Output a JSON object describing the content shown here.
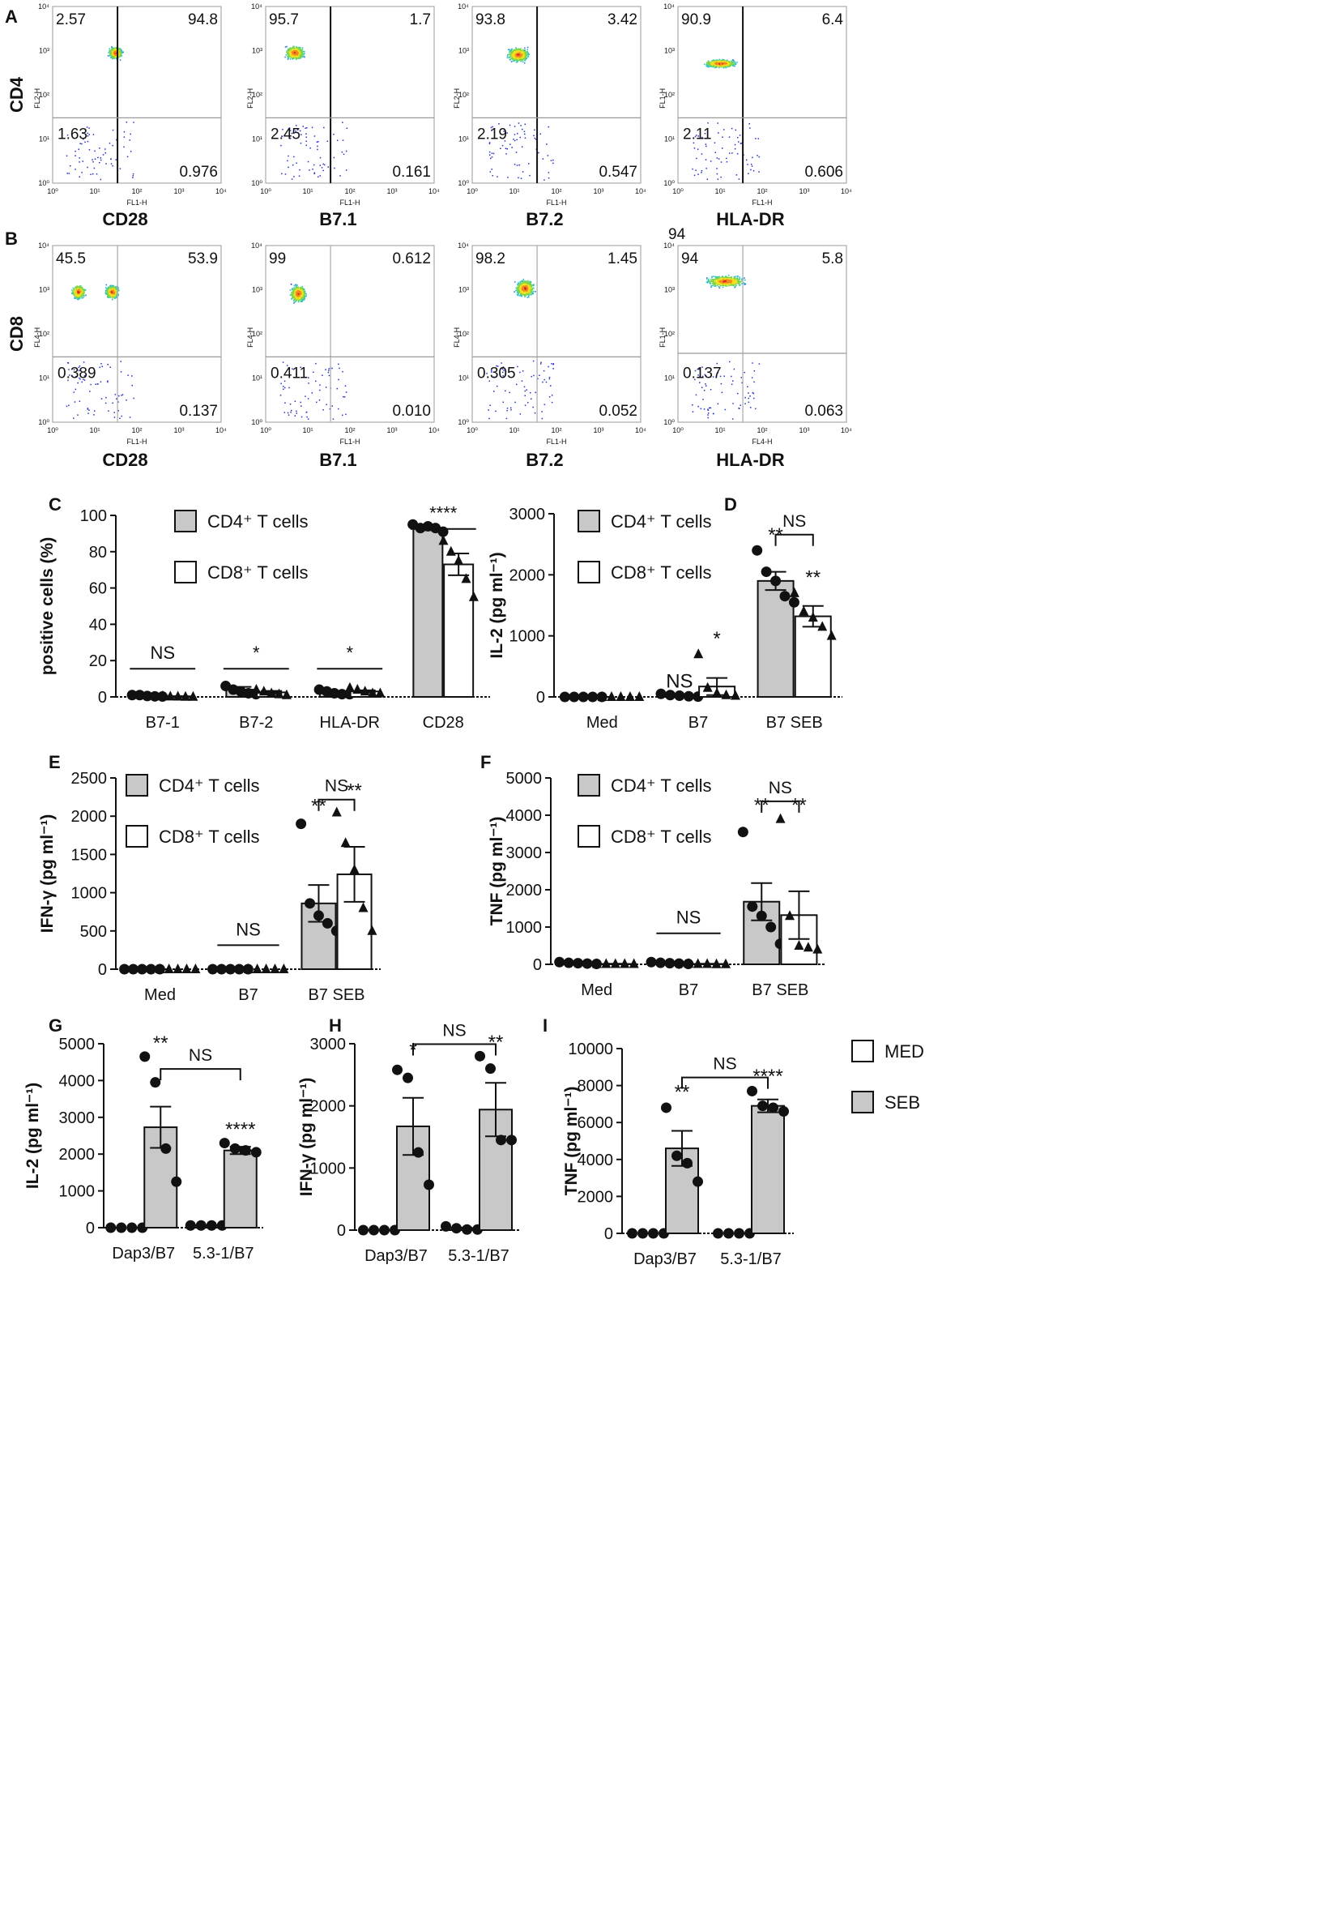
{
  "panel_letters": [
    "A",
    "B",
    "C",
    "D",
    "E",
    "F",
    "G",
    "H",
    "I"
  ],
  "flow": {
    "axis_labels": {
      "ticks": [
        "10⁰",
        "10¹",
        "10²",
        "10³",
        "10⁴"
      ],
      "fl1": "FL1-H",
      "fl2": "FL2-H",
      "fl4": "FL4-H"
    },
    "rows": [
      {
        "letter": "A",
        "marker": "CD4",
        "plots": [
          {
            "xlabel": "CD28",
            "xaxis": "FL1-H",
            "yaxis": "FL2-H",
            "ul": "2.57",
            "ur": "94.8",
            "ll": "1.63",
            "lr": "0.976"
          },
          {
            "xlabel": "B7.1",
            "xaxis": "FL1-H",
            "yaxis": "FL2-H",
            "ul": "95.7",
            "ur": "1.7",
            "ll": "2.45",
            "lr": "0.161"
          },
          {
            "xlabel": "B7.2",
            "xaxis": "FL1-H",
            "yaxis": "FL2-H",
            "ul": "93.8",
            "ur": "3.42",
            "ll": "2.19",
            "lr": "0.547"
          },
          {
            "xlabel": "HLA-DR",
            "xaxis": "FL1-H",
            "yaxis": "FL1-H",
            "ul": "90.9",
            "ur": "6.4",
            "ll": "2.11",
            "lr": "0.606"
          }
        ]
      },
      {
        "letter": "B",
        "marker": "CD8",
        "plots": [
          {
            "xlabel": "CD28",
            "xaxis": "FL1-H",
            "yaxis": "FL4-H",
            "ul": "45.5",
            "ur": "53.9",
            "ll": "0.389",
            "lr": "0.137"
          },
          {
            "xlabel": "B7.1",
            "xaxis": "FL1-H",
            "yaxis": "FL4-H",
            "ul": "99",
            "ur": "0.612",
            "ll": "0.411",
            "lr": "0.010"
          },
          {
            "xlabel": "B7.2",
            "xaxis": "FL1-H",
            "yaxis": "FL4-H",
            "ul": "98.2",
            "ur": "1.45",
            "ll": "0.305",
            "lr": "0.052"
          },
          {
            "xlabel": "HLA-DR",
            "xaxis": "FL4-H",
            "yaxis": "FL1-H",
            "ul": "94",
            "ur": "5.8",
            "ll": "0.137",
            "lr": "0.063",
            "extra": "94"
          }
        ]
      }
    ]
  },
  "chart_data": [
    {
      "panel": "C",
      "type": "bar",
      "ylabel": "positive cells (%)",
      "ylim": [
        0,
        100
      ],
      "yticks": [
        0,
        20,
        40,
        60,
        80,
        100
      ],
      "categories": [
        "B7-1",
        "B7-2",
        "HLA-DR",
        "CD28"
      ],
      "series": [
        {
          "name": "CD4⁺ T cells",
          "fill": "#c8c8c8",
          "marker": "circle",
          "values": [
            0.5,
            4,
            2.5,
            93
          ],
          "err": [
            0.2,
            1.5,
            0.8,
            1.2
          ],
          "points": [
            [
              1,
              1,
              0.5,
              0.3,
              0.2
            ],
            [
              6,
              4,
              3,
              2,
              1.5
            ],
            [
              4,
              3,
              2,
              1.5,
              1.5
            ],
            [
              95,
              93,
              94,
              93,
              91
            ]
          ]
        },
        {
          "name": "CD8⁺ T cells",
          "fill": "#ffffff",
          "marker": "triangle",
          "values": [
            0.3,
            2.5,
            3,
            73
          ],
          "err": [
            0.1,
            0.8,
            0.6,
            6
          ],
          "points": [
            [
              0.5,
              0.3,
              0.2,
              0.1,
              0.1
            ],
            [
              4,
              3,
              2,
              1.5,
              1
            ],
            [
              5,
              4,
              3,
              2,
              2
            ],
            [
              86,
              80,
              75,
              65,
              55
            ]
          ]
        }
      ],
      "annotations": [
        {
          "text": "NS",
          "cat": 0,
          "y": 20
        },
        {
          "text": "*",
          "cat": 1,
          "y": 20
        },
        {
          "text": "*",
          "cat": 2,
          "y": 20
        },
        {
          "text": "****",
          "cat": 3,
          "y": 97
        }
      ]
    },
    {
      "panel": "D",
      "type": "bar",
      "ylabel": "IL-2 (pg ml⁻¹)",
      "ylim": [
        0,
        3000
      ],
      "yticks": [
        0,
        1000,
        2000,
        3000
      ],
      "categories": [
        "Med",
        "B7",
        "B7 SEB"
      ],
      "series": [
        {
          "name": "CD4⁺ T cells",
          "fill": "#c8c8c8",
          "marker": "circle",
          "values": [
            0,
            20,
            1900
          ],
          "err": [
            0,
            10,
            150
          ],
          "points": [
            [
              0,
              0,
              0,
              0,
              0
            ],
            [
              50,
              30,
              20,
              10,
              5
            ],
            [
              2400,
              2050,
              1900,
              1650,
              1550
            ]
          ]
        },
        {
          "name": "CD8⁺ T cells",
          "fill": "#ffffff",
          "marker": "triangle",
          "values": [
            0,
            170,
            1320
          ],
          "err": [
            0,
            140,
            170
          ],
          "points": [
            [
              0,
              0,
              0,
              0,
              0
            ],
            [
              700,
              150,
              60,
              30,
              20
            ],
            [
              1700,
              1400,
              1300,
              1150,
              1000
            ]
          ]
        }
      ],
      "annotations": [
        {
          "text": "NS",
          "cat": 1,
          "series": 0,
          "y": 150
        },
        {
          "text": "*",
          "cat": 1,
          "series": 1,
          "y": 850
        },
        {
          "text": "**",
          "cat": 2,
          "series": 0,
          "y": 2550
        },
        {
          "text": "**",
          "cat": 2,
          "series": 1,
          "y": 1850
        },
        {
          "text": "NS",
          "cat": 2,
          "y": 2950,
          "bracket": true
        }
      ]
    },
    {
      "panel": "E",
      "type": "bar",
      "ylabel": "IFN-γ (pg ml⁻¹)",
      "ylim": [
        0,
        2500
      ],
      "yticks": [
        0,
        500,
        1000,
        1500,
        2000,
        2500
      ],
      "categories": [
        "Med",
        "B7",
        "B7 SEB"
      ],
      "series": [
        {
          "name": "CD4⁺ T cells",
          "fill": "#c8c8c8",
          "marker": "circle",
          "values": [
            0,
            0,
            860
          ],
          "err": [
            0,
            0,
            240
          ],
          "points": [
            [
              0,
              0,
              0,
              0,
              0
            ],
            [
              0,
              0,
              0,
              0,
              0
            ],
            [
              1900,
              860,
              700,
              600,
              500
            ]
          ]
        },
        {
          "name": "CD8⁺ T cells",
          "fill": "#ffffff",
          "marker": "triangle",
          "values": [
            0,
            0,
            1240
          ],
          "err": [
            0,
            0,
            360
          ],
          "points": [
            [
              0,
              0,
              0,
              0,
              0
            ],
            [
              0,
              0,
              0,
              0,
              0
            ],
            [
              2050,
              1650,
              1300,
              800,
              500
            ]
          ]
        }
      ],
      "annotations": [
        {
          "text": "NS",
          "cat": 1,
          "y": 420,
          "line": true
        },
        {
          "text": "**",
          "cat": 2,
          "series": 0,
          "y": 2050
        },
        {
          "text": "**",
          "cat": 2,
          "series": 1,
          "y": 2250
        },
        {
          "text": "NS",
          "cat": 2,
          "y": 2450,
          "bracket": true
        }
      ]
    },
    {
      "panel": "F",
      "type": "bar",
      "ylabel": "TNF (pg ml⁻¹)",
      "ylim": [
        0,
        5000
      ],
      "yticks": [
        0,
        1000,
        2000,
        3000,
        4000,
        5000
      ],
      "categories": [
        "Med",
        "B7",
        "B7 SEB"
      ],
      "series": [
        {
          "name": "CD4⁺ T cells",
          "fill": "#c8c8c8",
          "marker": "circle",
          "values": [
            30,
            30,
            1680
          ],
          "err": [
            10,
            10,
            500
          ],
          "points": [
            [
              60,
              40,
              30,
              20,
              10
            ],
            [
              60,
              40,
              30,
              20,
              10
            ],
            [
              3550,
              1550,
              1300,
              1000,
              550
            ]
          ]
        },
        {
          "name": "CD8⁺ T cells",
          "fill": "#ffffff",
          "marker": "triangle",
          "values": [
            10,
            10,
            1320
          ],
          "err": [
            5,
            5,
            640
          ],
          "points": [
            [
              10,
              10,
              10,
              10,
              10
            ],
            [
              20,
              10,
              10,
              5,
              5
            ],
            [
              3900,
              1300,
              500,
              450,
              400
            ]
          ]
        }
      ],
      "annotations": [
        {
          "text": "NS",
          "cat": 1,
          "y": 1050,
          "line": true
        },
        {
          "text": "**",
          "cat": 2,
          "series": 0,
          "y": 4100
        },
        {
          "text": "**",
          "cat": 2,
          "series": 1,
          "y": 4100
        },
        {
          "text": "NS",
          "cat": 2,
          "y": 4850,
          "bracket": true
        }
      ]
    },
    {
      "panel": "G",
      "type": "bar",
      "ylabel": "IL-2 (pg ml⁻¹)",
      "ylim": [
        0,
        5000
      ],
      "yticks": [
        0,
        1000,
        2000,
        3000,
        4000,
        5000
      ],
      "categories": [
        "Dap3/B7",
        "5.3-1/B7"
      ],
      "series": [
        {
          "name": "MED",
          "fill": "#ffffff",
          "marker": "circle",
          "values": [
            0,
            60
          ],
          "err": [
            0,
            10
          ],
          "points": [
            [
              0,
              0,
              0,
              0
            ],
            [
              60,
              60,
              60,
              60
            ]
          ]
        },
        {
          "name": "SEB",
          "fill": "#c8c8c8",
          "marker": "circle",
          "values": [
            2730,
            2100
          ],
          "err": [
            560,
            100
          ],
          "points": [
            [
              4650,
              3950,
              2150,
              1250
            ],
            [
              2300,
              2150,
              2100,
              2050
            ]
          ]
        }
      ],
      "annotations": [
        {
          "text": "**",
          "cat": 0,
          "series": 1,
          "y": 4850
        },
        {
          "text": "****",
          "cat": 1,
          "series": 1,
          "y": 2500
        },
        {
          "text": "NS",
          "cat": 1,
          "y": 4800,
          "bracket": true,
          "from": 0,
          "to": 1
        }
      ]
    },
    {
      "panel": "H",
      "type": "bar",
      "ylabel": "IFN-γ (pg ml⁻¹)",
      "ylim": [
        0,
        3000
      ],
      "yticks": [
        0,
        1000,
        2000,
        3000
      ],
      "categories": [
        "Dap3/B7",
        "5.3-1/B7"
      ],
      "series": [
        {
          "name": "MED",
          "fill": "#ffffff",
          "marker": "circle",
          "values": [
            0,
            30
          ],
          "err": [
            0,
            10
          ],
          "points": [
            [
              0,
              0,
              0,
              0
            ],
            [
              60,
              30,
              10,
              10
            ]
          ]
        },
        {
          "name": "SEB",
          "fill": "#c8c8c8",
          "marker": "circle",
          "values": [
            1670,
            1940
          ],
          "err": [
            460,
            430
          ],
          "points": [
            [
              2580,
              2450,
              1250,
              730
            ],
            [
              2800,
              2600,
              1450,
              1450
            ]
          ]
        }
      ],
      "annotations": [
        {
          "text": "*",
          "cat": 0,
          "series": 1,
          "y": 2800
        },
        {
          "text": "**",
          "cat": 1,
          "series": 1,
          "y": 2920
        },
        {
          "text": "NS",
          "cat": 1,
          "y": 3280,
          "bracket": true,
          "from": 0,
          "to": 1
        }
      ]
    },
    {
      "panel": "I",
      "type": "bar",
      "ylabel": "TNF (pg ml⁻¹)",
      "ylim": [
        0,
        10000
      ],
      "yticks": [
        0,
        2000,
        4000,
        6000,
        8000,
        10000
      ],
      "categories": [
        "Dap3/B7",
        "5.3-1/B7"
      ],
      "legend": [
        {
          "name": "MED",
          "fill": "#ffffff"
        },
        {
          "name": "SEB",
          "fill": "#c8c8c8"
        }
      ],
      "series": [
        {
          "name": "MED",
          "fill": "#ffffff",
          "marker": "circle",
          "values": [
            0,
            0
          ],
          "err": [
            0,
            0
          ],
          "points": [
            [
              0,
              0,
              0,
              0
            ],
            [
              0,
              0,
              0,
              0
            ]
          ]
        },
        {
          "name": "SEB",
          "fill": "#c8c8c8",
          "marker": "circle",
          "values": [
            4600,
            6900
          ],
          "err": [
            950,
            350
          ],
          "points": [
            [
              6800,
              4200,
              3800,
              2800
            ],
            [
              7700,
              6900,
              6800,
              6600
            ]
          ]
        }
      ],
      "annotations": [
        {
          "text": "**",
          "cat": 0,
          "series": 1,
          "y": 7300
        },
        {
          "text": "****",
          "cat": 1,
          "series": 1,
          "y": 8150
        },
        {
          "text": "NS",
          "cat": 1,
          "y": 9400,
          "bracket": true,
          "from": 0,
          "to": 1
        }
      ]
    }
  ]
}
